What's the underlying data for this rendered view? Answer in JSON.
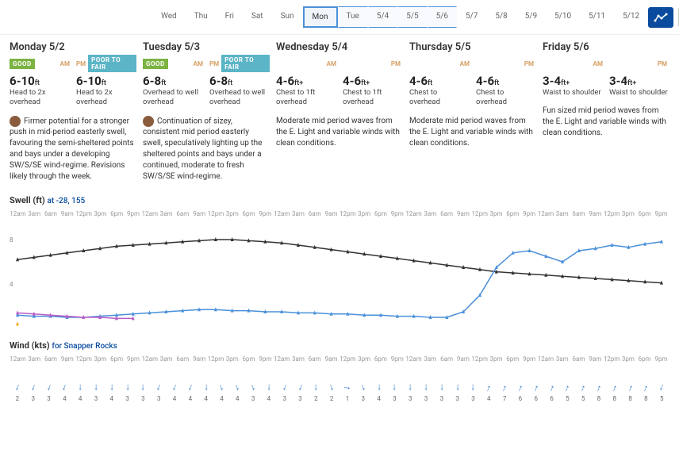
{
  "nav_days": [
    "Wed",
    "Thu",
    "Fri",
    "Sat",
    "Sun",
    "Mon",
    "Tue",
    "5/4",
    "5/5",
    "5/6",
    "5/7",
    "5/8",
    "5/9",
    "5/10",
    "5/11",
    "5/12"
  ],
  "nav_selected_index": 5,
  "nav_group_start": 5,
  "nav_group_end": 9,
  "columns": [
    {
      "title": "Monday 5/2",
      "am_rating": "GOOD",
      "am_rating_class": "good",
      "pm_rating": "POOR TO FAIR",
      "pm_rating_class": "p2f",
      "am_height": "6-10",
      "am_desc": "Head to 2x overhead",
      "pm_height": "6-10",
      "pm_desc": "Head to 2x overhead",
      "avatar": true,
      "text": "Firmer potential for a stronger push in mid-period easterly swell, favouring the semi-sheltered points and bays under a developing SW/S/SE wind-regime. Revisions likely through the week."
    },
    {
      "title": "Tuesday 5/3",
      "am_rating": "GOOD",
      "am_rating_class": "good",
      "pm_rating": "POOR TO FAIR",
      "pm_rating_class": "p2f",
      "am_height": "6-8",
      "am_desc": "Overhead to well overhead",
      "pm_height": "6-8",
      "pm_desc": "Overhead to well overhead",
      "avatar": true,
      "text": "Continuation of sizey, consistent mid period easterly swell, speculatively lighting up the sheltered points and bays under a continued, moderate to fresh SW/S/SE wind-regime."
    },
    {
      "title": "Wednesday 5/4",
      "am_rating": "",
      "pm_rating": "",
      "am_height": "4-6",
      "am_plus": "+",
      "am_desc": "Chest to 1ft overhead",
      "pm_height": "4-6",
      "pm_plus": "+",
      "pm_desc": "Chest to 1ft overhead",
      "text": "Moderate mid period waves from the E. Light and variable winds with clean conditions."
    },
    {
      "title": "Thursday 5/5",
      "am_rating": "",
      "pm_rating": "",
      "am_height": "4-6",
      "am_desc": "Chest to overhead",
      "pm_height": "4-6",
      "pm_desc": "Chest to overhead",
      "text": "Moderate mid period waves from the E. Light and variable winds with clean conditions."
    },
    {
      "title": "Friday 5/6",
      "am_rating": "",
      "pm_rating": "",
      "am_height": "3-4",
      "am_plus": "+",
      "am_desc": "Waist to shoulder",
      "pm_height": "3-4",
      "pm_plus": "+",
      "pm_desc": "Waist to shoulder",
      "text": "Fun sized mid period waves from the E. Light and variable winds with clean conditions."
    }
  ],
  "swell": {
    "title": "Swell (ft)",
    "sub": "at -28, 155",
    "times": [
      "12am",
      "3am",
      "6am",
      "9am",
      "12pm",
      "3pm",
      "6pm",
      "9pm"
    ],
    "axis": [
      8,
      4
    ],
    "ylim": [
      0,
      10
    ],
    "series": [
      {
        "color": "#333",
        "values": [
          6.2,
          6.4,
          6.6,
          6.8,
          7.0,
          7.2,
          7.4,
          7.5,
          7.6,
          7.7,
          7.8,
          7.9,
          8.0,
          8.0,
          7.9,
          7.8,
          7.7,
          7.5,
          7.3,
          7.1,
          6.9,
          6.7,
          6.5,
          6.3,
          6.1,
          5.9,
          5.7,
          5.5,
          5.3,
          5.1,
          5.0,
          4.9,
          4.8,
          4.7,
          4.6,
          4.5,
          4.4,
          4.3,
          4.2,
          4.1
        ]
      },
      {
        "color": "#4a90d9",
        "values": [
          1.2,
          1.1,
          1.1,
          1.0,
          1.0,
          1.1,
          1.2,
          1.3,
          1.4,
          1.5,
          1.6,
          1.7,
          1.7,
          1.6,
          1.6,
          1.5,
          1.5,
          1.4,
          1.4,
          1.3,
          1.3,
          1.2,
          1.2,
          1.1,
          1.1,
          1.0,
          1.0,
          1.5,
          3.0,
          5.5,
          6.8,
          7.0,
          6.5,
          6.0,
          7.0,
          7.2,
          7.5,
          7.3,
          7.6,
          7.8
        ]
      },
      {
        "color": "#b95cc7",
        "values": [
          1.4,
          1.3,
          1.2,
          1.1,
          1.0,
          1.0,
          0.9,
          0.9,
          null,
          null,
          null,
          null,
          null,
          null,
          null,
          null,
          null,
          null,
          null,
          null,
          null,
          null,
          null,
          null,
          null,
          null,
          null,
          null,
          null,
          null,
          null,
          null,
          null,
          null,
          null,
          null,
          null,
          null,
          null,
          null
        ]
      },
      {
        "color": "#f5a623",
        "values": [
          0.4,
          null,
          null,
          null,
          null,
          null,
          null,
          null,
          null,
          null,
          null,
          null,
          null,
          null,
          null,
          null,
          null,
          null,
          null,
          null,
          null,
          null,
          null,
          null,
          null,
          null,
          null,
          null,
          null,
          null,
          null,
          null,
          null,
          null,
          null,
          null,
          null,
          null,
          null,
          null
        ]
      }
    ]
  },
  "wind": {
    "title": "Wind (kts)",
    "sub": "for Snapper Rocks",
    "times": [
      "12am",
      "3am",
      "6am",
      "9am",
      "12pm",
      "3pm",
      "6pm",
      "9pm"
    ],
    "points": [
      {
        "dir": 200,
        "v": 2
      },
      {
        "dir": 200,
        "v": 3
      },
      {
        "dir": 200,
        "v": 3
      },
      {
        "dir": 200,
        "v": 4
      },
      {
        "dir": 180,
        "v": 4
      },
      {
        "dir": 180,
        "v": 3
      },
      {
        "dir": 180,
        "v": 4
      },
      {
        "dir": 180,
        "v": 3
      },
      {
        "dir": 180,
        "v": 3
      },
      {
        "dir": 200,
        "v": 3
      },
      {
        "dir": 200,
        "v": 4
      },
      {
        "dir": 200,
        "v": 4
      },
      {
        "dir": 180,
        "v": 4
      },
      {
        "dir": 160,
        "v": 4
      },
      {
        "dir": 160,
        "v": 4
      },
      {
        "dir": 160,
        "v": 3
      },
      {
        "dir": 180,
        "v": 4
      },
      {
        "dir": 200,
        "v": 3
      },
      {
        "dir": 200,
        "v": 3
      },
      {
        "dir": 180,
        "v": 2
      },
      {
        "dir": 160,
        "v": 2
      },
      {
        "dir": 100,
        "v": 1
      },
      {
        "dir": 160,
        "v": 3
      },
      {
        "dir": 180,
        "v": 4
      },
      {
        "dir": 180,
        "v": 3
      },
      {
        "dir": 180,
        "v": 3
      },
      {
        "dir": 180,
        "v": 3
      },
      {
        "dir": 180,
        "v": 3
      },
      {
        "dir": 180,
        "v": 3
      },
      {
        "dir": 180,
        "v": 3
      },
      {
        "dir": 20,
        "v": 4
      },
      {
        "dir": 20,
        "v": 7
      },
      {
        "dir": 20,
        "v": 6
      },
      {
        "dir": 20,
        "v": 6
      },
      {
        "dir": 20,
        "v": 6
      },
      {
        "dir": 20,
        "v": 5
      },
      {
        "dir": 20,
        "v": 5
      },
      {
        "dir": 20,
        "v": 8
      },
      {
        "dir": 20,
        "v": 8
      },
      {
        "dir": 20,
        "v": 8
      },
      {
        "dir": 20,
        "v": 8
      },
      {
        "dir": 200,
        "v": 5
      }
    ]
  },
  "colors": {
    "accent": "#0a4b9e",
    "good": "#7cb342",
    "p2f": "#5bb5c7"
  }
}
